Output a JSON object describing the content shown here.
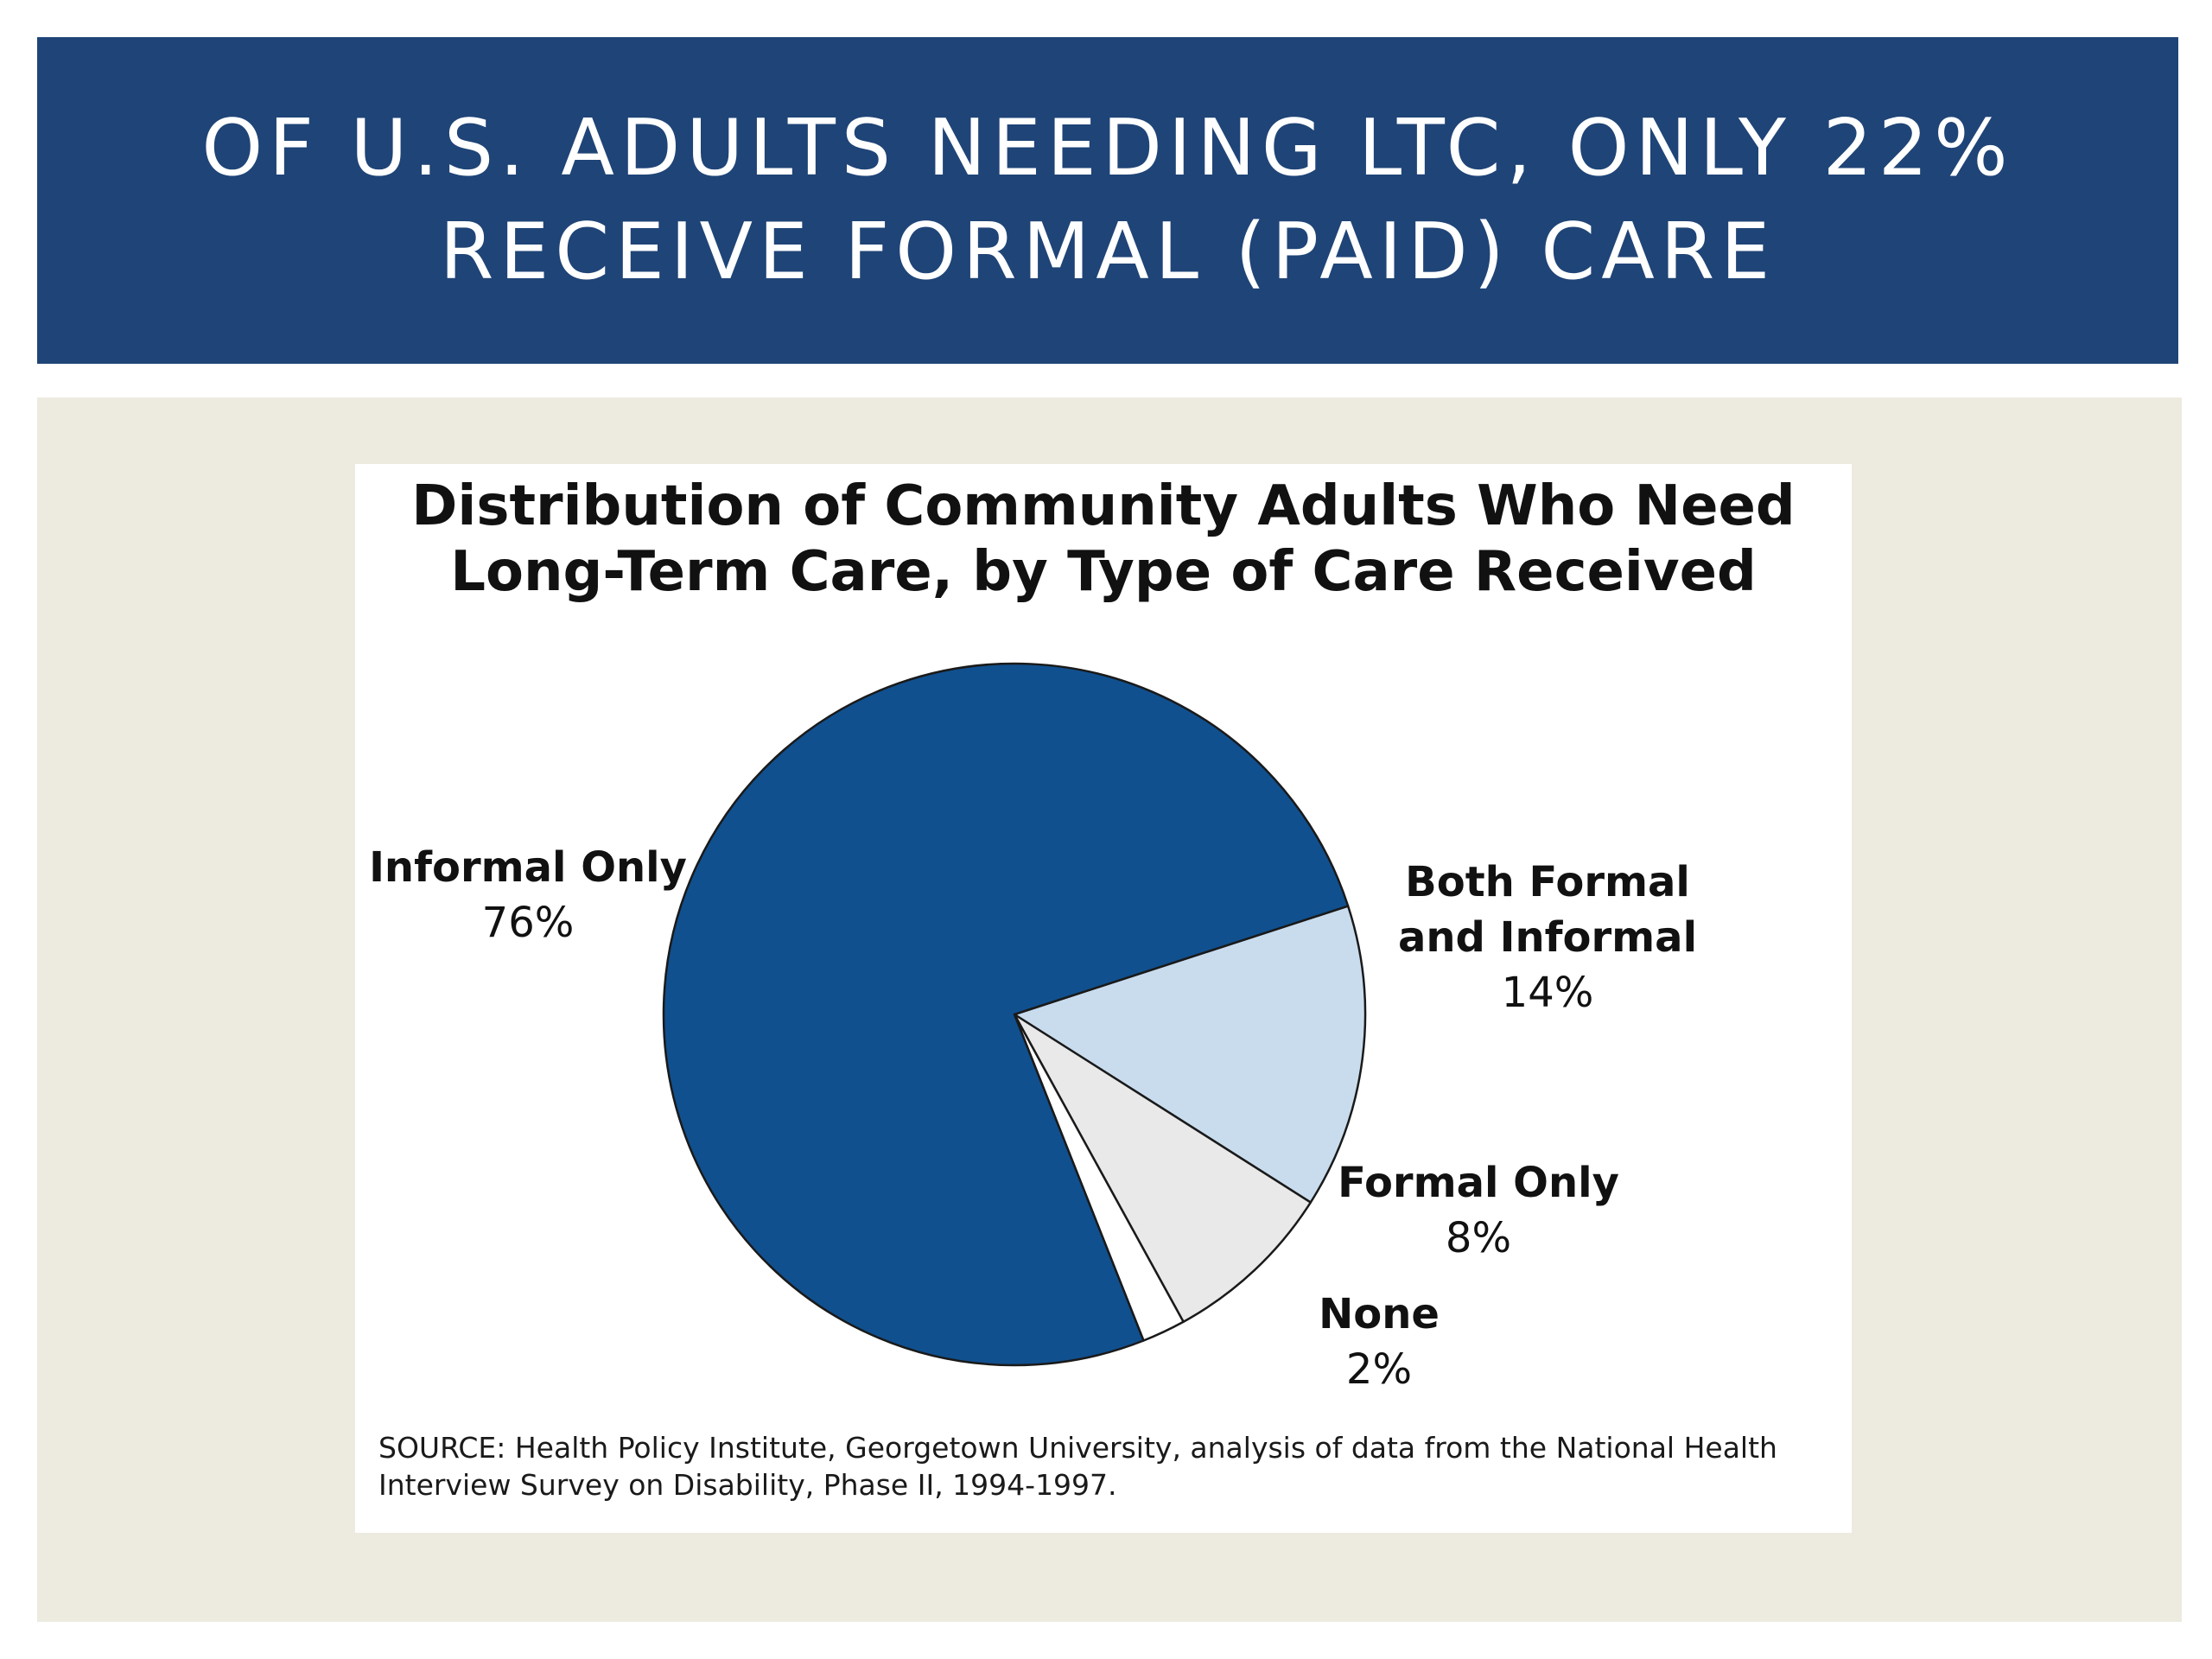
{
  "slide": {
    "title_line1": "OF U.S. ADULTS NEEDING LTC, ONLY 22%",
    "title_line2": "RECEIVE FORMAL (PAID) CARE"
  },
  "chart_data": {
    "type": "pie",
    "title_line1": "Distribution of Community Adults Who Need",
    "title_line2": "Long-Term Care, by Type of Care Received",
    "slices": [
      {
        "name": "Informal Only",
        "label_lines": [
          "Informal Only"
        ],
        "value": 76,
        "value_label": "76%",
        "color": "#10508f"
      },
      {
        "name": "Both Formal and Informal",
        "label_lines": [
          "Both Formal",
          "and Informal"
        ],
        "value": 14,
        "value_label": "14%",
        "color": "#c8dcee"
      },
      {
        "name": "Formal Only",
        "label_lines": [
          "Formal Only"
        ],
        "value": 8,
        "value_label": "8%",
        "color": "#e9e9e9"
      },
      {
        "name": "None",
        "label_lines": [
          "None"
        ],
        "value": 2,
        "value_label": "2%",
        "color": "#ffffff"
      }
    ],
    "source_line1": "SOURCE: Health Policy Institute, Georgetown University, analysis of data from the National Health",
    "source_line2": "Interview Survey on Disability, Phase II, 1994-1997."
  }
}
